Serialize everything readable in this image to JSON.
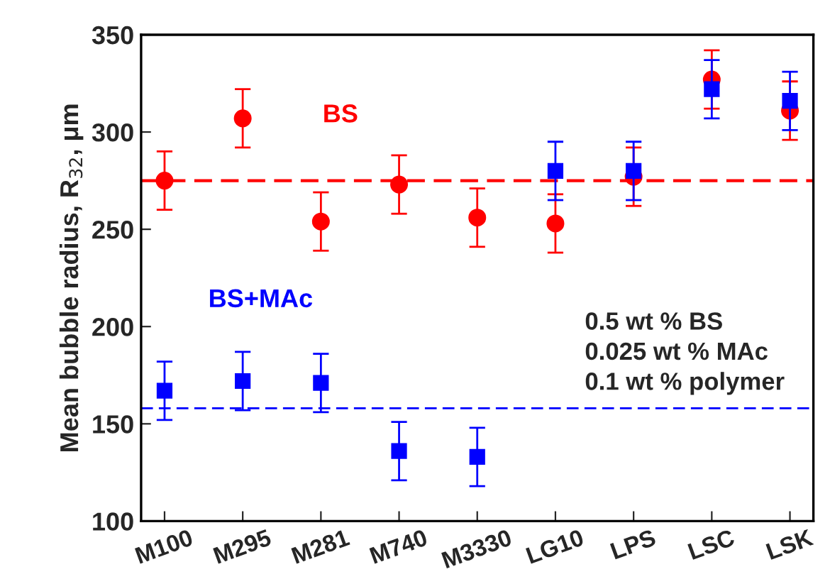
{
  "chart_data": {
    "type": "scatter",
    "ylabel": "Mean bubble radius, R$_{32}$, μm",
    "categories": [
      "M100",
      "M295",
      "M281",
      "M740",
      "M3330",
      "LG10",
      "LPS",
      "LSC",
      "LSK"
    ],
    "series": [
      {
        "name": "BS",
        "color": "#ff0000",
        "marker": "circle",
        "values": [
          275,
          307,
          254,
          273,
          256,
          253,
          277,
          327,
          311
        ],
        "errors": [
          15,
          15,
          15,
          15,
          15,
          15,
          15,
          15,
          15
        ]
      },
      {
        "name": "BS+MAc",
        "color": "#0000ff",
        "marker": "square",
        "values": [
          167,
          172,
          171,
          136,
          133,
          280,
          280,
          322,
          316
        ],
        "errors": [
          15,
          15,
          15,
          15,
          15,
          15,
          15,
          15,
          15
        ]
      }
    ],
    "ref_lines": [
      {
        "axis": "y",
        "value": 275,
        "color": "#ff0000",
        "line_style": "dashed"
      },
      {
        "axis": "y",
        "value": 158,
        "color": "#0000ff",
        "line_style": "dashed"
      }
    ],
    "annotations": [
      "0.5 wt % BS\n0.025 wt % MAc\n0.1 wt % polymer"
    ],
    "ylim": [
      100,
      350
    ],
    "yticks": [
      100,
      150,
      200,
      250,
      300,
      350
    ],
    "grid": false,
    "legend": false
  }
}
